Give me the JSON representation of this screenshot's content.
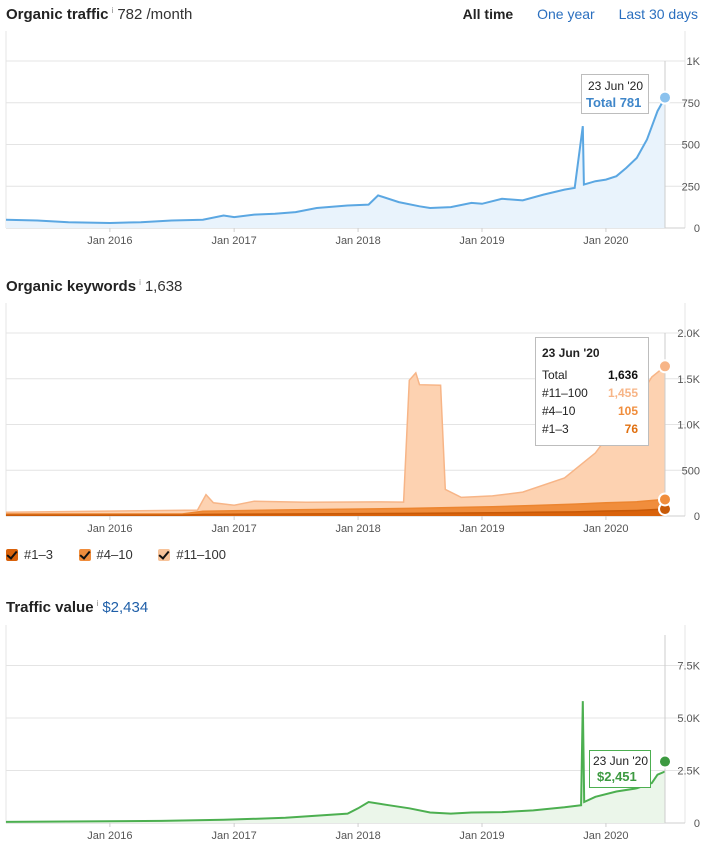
{
  "time_range": {
    "all_time": "All time",
    "one_year": "One year",
    "last_30_days": "Last 30 days"
  },
  "x_tick_labels": [
    "Jan 2016",
    "Jan 2017",
    "Jan 2018",
    "Jan 2019",
    "Jan 2020"
  ],
  "traffic": {
    "title": "Organic traffic",
    "info": "i",
    "value": "782 /month",
    "y_tick_labels": [
      "1K",
      "750",
      "500",
      "250",
      "0"
    ],
    "tooltip": {
      "date": "23 Jun '20",
      "label": "Total 781"
    },
    "color": "#5ba7e2",
    "fill": "#e9f3fc"
  },
  "keywords": {
    "title": "Organic keywords",
    "info": "i",
    "value": "1,638",
    "y_tick_labels": [
      "2.0K",
      "1.5K",
      "1.0K",
      "500",
      "0"
    ],
    "tooltip": {
      "date": "23 Jun '20",
      "rows": [
        {
          "label": "Total",
          "value": "1,636",
          "color": "#111111"
        },
        {
          "label": "#11–100",
          "value": "1,455",
          "color": "#f7b587"
        },
        {
          "label": "#4–10",
          "value": "105",
          "color": "#f08d3c"
        },
        {
          "label": "#1–3",
          "value": "76",
          "color": "#e07010"
        }
      ]
    },
    "legend": [
      {
        "label": "#1–3",
        "color": "#d9620b"
      },
      {
        "label": "#4–10",
        "color": "#f08d3c"
      },
      {
        "label": "#11–100",
        "color": "#f7c39a"
      }
    ]
  },
  "value": {
    "title": "Traffic value",
    "info": "i",
    "value": "$2,434",
    "y_tick_labels": [
      "7.5K",
      "5.0K",
      "2.5K",
      "0"
    ],
    "tooltip": {
      "date": "23 Jun '20",
      "label": "$2,451"
    },
    "color": "#4caf50",
    "fill": "#ebf6ea"
  },
  "chart_data": [
    {
      "type": "area",
      "title": "Organic traffic",
      "ylabel": "",
      "xlabel": "",
      "ylim": [
        0,
        1000
      ],
      "grid": true,
      "series": [
        {
          "values": [
            [
              "2015-03-01",
              50
            ],
            [
              "2015-06-01",
              45
            ],
            [
              "2015-09-01",
              35
            ],
            [
              "2016-01-01",
              30
            ],
            [
              "2016-04-01",
              35
            ],
            [
              "2016-07-01",
              45
            ],
            [
              "2016-10-01",
              50
            ],
            [
              "2016-12-01",
              75
            ],
            [
              "2017-01-01",
              65
            ],
            [
              "2017-03-01",
              80
            ],
            [
              "2017-05-01",
              85
            ],
            [
              "2017-07-01",
              95
            ],
            [
              "2017-09-01",
              120
            ],
            [
              "2017-12-01",
              135
            ],
            [
              "2018-02-01",
              140
            ],
            [
              "2018-03-01",
              195
            ],
            [
              "2018-05-01",
              155
            ],
            [
              "2018-07-01",
              130
            ],
            [
              "2018-08-01",
              120
            ],
            [
              "2018-10-01",
              125
            ],
            [
              "2018-12-01",
              150
            ],
            [
              "2019-01-01",
              145
            ],
            [
              "2019-03-01",
              175
            ],
            [
              "2019-05-01",
              165
            ],
            [
              "2019-07-01",
              200
            ],
            [
              "2019-09-01",
              230
            ],
            [
              "2019-10-01",
              240
            ],
            [
              "2019-10-25",
              610
            ],
            [
              "2019-10-28",
              260
            ],
            [
              "2019-12-01",
              280
            ],
            [
              "2020-01-01",
              290
            ],
            [
              "2020-02-01",
              310
            ],
            [
              "2020-03-01",
              360
            ],
            [
              "2020-04-01",
              420
            ],
            [
              "2020-05-01",
              530
            ],
            [
              "2020-06-01",
              700
            ],
            [
              "2020-06-23",
              781
            ]
          ]
        }
      ]
    },
    {
      "type": "area",
      "title": "Organic keywords",
      "ylabel": "",
      "xlabel": "",
      "ylim": [
        0,
        2000
      ],
      "grid": true,
      "series": [
        {
          "name": "#1–3",
          "values": [
            [
              "2015-03-01",
              10
            ],
            [
              "2016-08-01",
              10
            ],
            [
              "2016-10-01",
              18
            ],
            [
              "2017-06-01",
              22
            ],
            [
              "2018-06-01",
              28
            ],
            [
              "2019-02-01",
              35
            ],
            [
              "2019-06-01",
              40
            ],
            [
              "2019-10-01",
              45
            ],
            [
              "2020-01-01",
              55
            ],
            [
              "2020-04-01",
              60
            ],
            [
              "2020-06-23",
              76
            ]
          ]
        },
        {
          "name": "#4–10",
          "values": [
            [
              "2015-03-01",
              12
            ],
            [
              "2016-08-01",
              12
            ],
            [
              "2016-10-01",
              35
            ],
            [
              "2017-06-01",
              45
            ],
            [
              "2018-06-01",
              55
            ],
            [
              "2019-02-01",
              65
            ],
            [
              "2019-06-01",
              75
            ],
            [
              "2019-10-01",
              85
            ],
            [
              "2020-01-01",
              90
            ],
            [
              "2020-04-01",
              95
            ],
            [
              "2020-06-23",
              105
            ]
          ]
        },
        {
          "name": "#11–100",
          "values": [
            [
              "2015-03-01",
              20
            ],
            [
              "2016-09-15",
              20
            ],
            [
              "2016-10-10",
              180
            ],
            [
              "2016-11-01",
              90
            ],
            [
              "2017-01-01",
              60
            ],
            [
              "2017-03-01",
              100
            ],
            [
              "2017-08-01",
              80
            ],
            [
              "2018-03-01",
              75
            ],
            [
              "2018-05-15",
              70
            ],
            [
              "2018-06-01",
              1400
            ],
            [
              "2018-06-20",
              1480
            ],
            [
              "2018-07-01",
              1350
            ],
            [
              "2018-09-01",
              1340
            ],
            [
              "2018-09-15",
              200
            ],
            [
              "2018-11-01",
              110
            ],
            [
              "2019-02-01",
              120
            ],
            [
              "2019-05-01",
              150
            ],
            [
              "2019-09-01",
              290
            ],
            [
              "2019-12-01",
              550
            ],
            [
              "2020-02-01",
              850
            ],
            [
              "2020-04-01",
              1100
            ],
            [
              "2020-05-15",
              1350
            ],
            [
              "2020-06-23",
              1455
            ]
          ]
        }
      ]
    },
    {
      "type": "area",
      "title": "Traffic value",
      "ylabel": "",
      "xlabel": "",
      "ylim": [
        0,
        8000
      ],
      "grid": true,
      "series": [
        {
          "values": [
            [
              "2015-03-01",
              50
            ],
            [
              "2016-06-01",
              100
            ],
            [
              "2016-12-01",
              150
            ],
            [
              "2017-06-01",
              250
            ],
            [
              "2017-12-01",
              450
            ],
            [
              "2018-01-01",
              700
            ],
            [
              "2018-02-01",
              1000
            ],
            [
              "2018-04-01",
              850
            ],
            [
              "2018-06-01",
              700
            ],
            [
              "2018-08-01",
              500
            ],
            [
              "2018-10-01",
              450
            ],
            [
              "2018-12-01",
              500
            ],
            [
              "2019-03-01",
              520
            ],
            [
              "2019-06-01",
              600
            ],
            [
              "2019-09-01",
              750
            ],
            [
              "2019-10-20",
              850
            ],
            [
              "2019-10-25",
              5800
            ],
            [
              "2019-10-29",
              1000
            ],
            [
              "2019-12-01",
              1250
            ],
            [
              "2020-02-01",
              1500
            ],
            [
              "2020-04-01",
              1650
            ],
            [
              "2020-05-15",
              1900
            ],
            [
              "2020-06-01",
              2300
            ],
            [
              "2020-06-23",
              2451
            ]
          ]
        }
      ]
    }
  ]
}
